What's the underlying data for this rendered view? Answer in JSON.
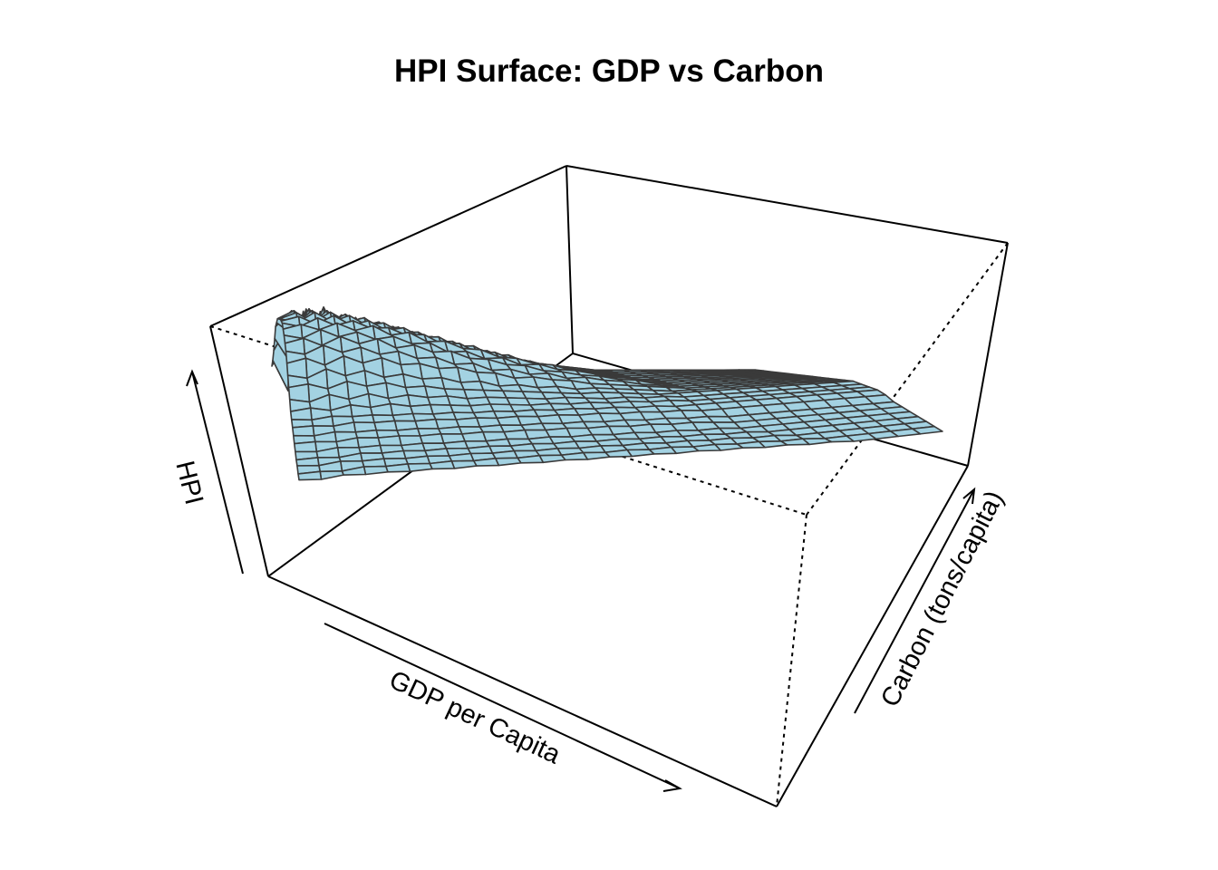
{
  "chart_data": {
    "type": "surface",
    "title": "HPI Surface: GDP vs Carbon",
    "xlabel": "GDP per Capita",
    "ylabel": "Carbon (tons/capita)",
    "zlabel": "HPI",
    "surface_color": "#a3d2e2",
    "mesh_color": "#3a3a3a",
    "box": true,
    "ticks": false,
    "grid": {
      "x_count": 30,
      "y_count": 30,
      "z": [
        [
          3.0,
          4.5,
          2.0,
          5.5,
          1.5,
          5.0,
          2.5,
          4.8,
          3.2,
          4.0,
          2.8,
          4.4,
          3.0,
          3.8,
          3.3,
          3.6,
          3.4,
          3.5,
          3.4,
          3.5,
          3.4,
          3.5,
          3.4,
          3.5,
          3.4,
          3.5,
          3.4,
          3.5,
          3.4,
          3.5
        ],
        [
          3.5,
          2.0,
          6.0,
          2.5,
          5.8,
          3.0,
          5.2,
          2.8,
          4.6,
          3.4,
          4.2,
          3.2,
          3.9,
          3.4,
          3.7,
          3.5,
          3.6,
          3.5,
          3.5,
          3.5,
          3.5,
          3.5,
          3.5,
          3.5,
          3.5,
          3.5,
          3.5,
          3.5,
          3.5,
          3.5
        ],
        [
          4.2,
          5.6,
          3.0,
          6.2,
          3.5,
          5.5,
          3.8,
          5.0,
          3.9,
          4.6,
          3.8,
          4.3,
          3.7,
          4.0,
          3.7,
          3.8,
          3.6,
          3.7,
          3.6,
          3.6,
          3.6,
          3.6,
          3.6,
          3.6,
          3.6,
          3.6,
          3.6,
          3.6,
          3.6,
          3.6
        ],
        [
          5.0,
          3.8,
          6.5,
          4.0,
          6.0,
          4.2,
          5.6,
          4.3,
          5.0,
          4.2,
          4.6,
          4.1,
          4.3,
          4.0,
          4.0,
          3.9,
          3.8,
          3.8,
          3.7,
          3.7,
          3.7,
          3.7,
          3.7,
          3.7,
          3.7,
          3.7,
          3.7,
          3.7,
          3.7,
          3.7
        ],
        [
          5.8,
          6.6,
          5.0,
          6.8,
          5.2,
          6.3,
          5.0,
          5.8,
          4.8,
          5.3,
          4.6,
          4.9,
          4.4,
          4.5,
          4.2,
          4.2,
          4.0,
          4.0,
          3.9,
          3.8,
          3.8,
          3.8,
          3.8,
          3.8,
          3.8,
          3.8,
          3.8,
          3.8,
          3.8,
          3.8
        ],
        [
          6.2,
          5.6,
          6.9,
          5.8,
          6.6,
          5.6,
          6.2,
          5.4,
          5.7,
          5.1,
          5.2,
          4.8,
          4.8,
          4.5,
          4.5,
          4.3,
          4.2,
          4.1,
          4.0,
          3.9,
          3.9,
          3.9,
          3.9,
          3.9,
          3.9,
          3.9,
          3.9,
          3.9,
          3.9,
          3.9
        ],
        [
          6.6,
          7.0,
          6.3,
          7.0,
          6.2,
          6.6,
          6.0,
          6.2,
          5.6,
          5.7,
          5.2,
          5.2,
          4.8,
          4.8,
          4.5,
          4.5,
          4.3,
          4.2,
          4.1,
          4.0,
          4.0,
          4.0,
          4.0,
          4.0,
          4.0,
          4.0,
          4.0,
          4.0,
          4.0,
          4.0
        ],
        [
          6.8,
          6.5,
          7.2,
          6.6,
          7.0,
          6.4,
          6.6,
          6.0,
          6.1,
          5.6,
          5.6,
          5.2,
          5.1,
          4.8,
          4.7,
          4.5,
          4.4,
          4.3,
          4.2,
          4.1,
          4.0,
          4.0,
          4.0,
          4.0,
          4.0,
          4.0,
          4.0,
          4.0,
          4.0,
          4.0
        ],
        [
          7.0,
          7.3,
          6.8,
          7.3,
          6.8,
          7.0,
          6.4,
          6.5,
          6.0,
          6.0,
          5.5,
          5.5,
          5.0,
          5.0,
          4.7,
          4.6,
          4.4,
          4.3,
          4.2,
          4.1,
          4.0,
          4.0,
          4.0,
          4.0,
          4.0,
          4.0,
          4.0,
          4.0,
          4.0,
          4.0
        ],
        [
          7.2,
          7.0,
          7.5,
          7.0,
          7.3,
          6.8,
          6.9,
          6.4,
          6.4,
          5.9,
          5.9,
          5.4,
          5.4,
          5.0,
          4.9,
          4.7,
          4.5,
          4.4,
          4.2,
          4.1,
          4.0,
          4.0,
          4.0,
          4.0,
          4.0,
          4.0,
          4.0,
          4.0,
          4.0,
          4.0
        ],
        [
          7.3,
          7.5,
          7.1,
          7.5,
          7.0,
          7.2,
          6.7,
          6.8,
          6.3,
          6.3,
          5.8,
          5.8,
          5.3,
          5.3,
          4.9,
          4.8,
          4.6,
          4.4,
          4.3,
          4.1,
          4.0,
          4.0,
          4.0,
          4.0,
          4.0,
          4.0,
          4.0,
          4.0,
          4.0,
          4.0
        ],
        [
          7.4,
          7.2,
          7.6,
          7.2,
          7.4,
          7.0,
          7.0,
          6.6,
          6.6,
          6.1,
          6.1,
          5.6,
          5.6,
          5.2,
          5.1,
          4.8,
          4.7,
          4.5,
          4.3,
          4.2,
          4.0,
          4.0,
          4.0,
          4.0,
          4.0,
          4.0,
          4.0,
          4.0,
          4.0,
          4.0
        ],
        [
          7.3,
          7.5,
          7.2,
          7.5,
          7.1,
          7.3,
          6.8,
          6.9,
          6.4,
          6.4,
          6.0,
          5.9,
          5.5,
          5.4,
          5.1,
          5.0,
          4.7,
          4.6,
          4.4,
          4.2,
          4.1,
          4.0,
          4.0,
          4.0,
          4.0,
          4.0,
          4.0,
          4.0,
          4.0,
          4.0
        ],
        [
          7.2,
          7.0,
          7.4,
          7.0,
          7.2,
          6.8,
          6.9,
          6.5,
          6.5,
          6.0,
          6.0,
          5.6,
          5.6,
          5.2,
          5.2,
          4.9,
          4.8,
          4.6,
          4.4,
          4.3,
          4.1,
          4.0,
          4.0,
          4.0,
          4.0,
          4.0,
          4.0,
          4.0,
          4.0,
          4.0
        ],
        [
          7.0,
          7.2,
          6.8,
          7.2,
          6.8,
          7.0,
          6.5,
          6.6,
          6.2,
          6.2,
          5.8,
          5.7,
          5.4,
          5.3,
          5.0,
          4.9,
          4.7,
          4.6,
          4.4,
          4.3,
          4.1,
          4.0,
          4.0,
          4.0,
          4.0,
          4.0,
          4.0,
          4.0,
          4.0,
          4.0
        ],
        [
          6.8,
          6.6,
          7.0,
          6.6,
          6.8,
          6.4,
          6.5,
          6.1,
          6.1,
          5.7,
          5.7,
          5.3,
          5.3,
          5.0,
          5.0,
          4.7,
          4.7,
          4.5,
          4.4,
          4.2,
          4.1,
          4.0,
          4.0,
          4.0,
          4.0,
          4.0,
          4.0,
          4.0,
          4.0,
          4.0
        ],
        [
          6.4,
          6.6,
          6.2,
          6.6,
          6.2,
          6.4,
          6.0,
          6.0,
          5.7,
          5.7,
          5.4,
          5.3,
          5.0,
          5.0,
          4.8,
          4.7,
          4.5,
          4.4,
          4.3,
          4.2,
          4.1,
          4.0,
          4.0,
          4.0,
          4.0,
          4.0,
          4.0,
          4.0,
          4.0,
          4.0
        ],
        [
          6.0,
          5.8,
          6.2,
          5.8,
          6.0,
          5.6,
          5.7,
          5.4,
          5.4,
          5.1,
          5.1,
          4.8,
          4.8,
          4.6,
          4.6,
          4.4,
          4.4,
          4.3,
          4.2,
          4.1,
          4.0,
          4.0,
          4.0,
          4.0,
          4.0,
          4.0,
          4.0,
          4.0,
          4.0,
          4.0
        ],
        [
          5.6,
          5.7,
          5.4,
          5.7,
          5.4,
          5.5,
          5.2,
          5.2,
          5.0,
          4.9,
          4.8,
          4.7,
          4.6,
          4.5,
          4.4,
          4.3,
          4.3,
          4.2,
          4.1,
          4.0,
          4.0,
          4.0,
          4.0,
          4.0,
          4.0,
          4.0,
          4.0,
          4.0,
          4.0,
          4.0
        ],
        [
          5.2,
          5.0,
          5.3,
          5.0,
          5.2,
          4.9,
          5.0,
          4.8,
          4.8,
          4.6,
          4.6,
          4.5,
          4.4,
          4.3,
          4.3,
          4.2,
          4.1,
          4.1,
          4.0,
          4.0,
          3.9,
          3.9,
          3.9,
          3.9,
          3.9,
          3.9,
          3.9,
          3.9,
          3.9,
          3.9
        ],
        [
          4.8,
          4.9,
          4.7,
          4.9,
          4.7,
          4.8,
          4.6,
          4.6,
          4.5,
          4.4,
          4.4,
          4.3,
          4.2,
          4.2,
          4.1,
          4.1,
          4.0,
          4.0,
          3.9,
          3.9,
          3.8,
          3.8,
          3.8,
          3.8,
          3.8,
          3.8,
          3.8,
          3.8,
          3.8,
          3.8
        ],
        [
          4.6,
          4.5,
          4.6,
          4.5,
          4.5,
          4.4,
          4.4,
          4.3,
          4.3,
          4.2,
          4.2,
          4.1,
          4.1,
          4.0,
          4.0,
          3.9,
          3.9,
          3.8,
          3.8,
          3.7,
          3.7,
          3.7,
          3.7,
          3.7,
          3.7,
          3.7,
          3.7,
          3.7,
          3.7,
          3.7
        ],
        [
          4.4,
          4.4,
          4.3,
          4.4,
          4.3,
          4.3,
          4.2,
          4.2,
          4.1,
          4.1,
          4.0,
          4.0,
          3.9,
          3.9,
          3.8,
          3.8,
          3.7,
          3.7,
          3.6,
          3.6,
          3.5,
          3.5,
          3.5,
          3.5,
          3.5,
          3.5,
          3.5,
          3.5,
          3.5,
          3.5
        ],
        [
          4.2,
          4.1,
          4.2,
          4.1,
          4.1,
          4.0,
          4.0,
          3.9,
          3.9,
          3.8,
          3.8,
          3.7,
          3.7,
          3.6,
          3.6,
          3.5,
          3.5,
          3.4,
          3.4,
          3.3,
          3.3,
          3.2,
          3.2,
          3.2,
          3.2,
          3.2,
          3.2,
          3.2,
          3.2,
          3.2
        ],
        [
          4.0,
          4.0,
          3.9,
          4.0,
          3.9,
          3.9,
          3.8,
          3.8,
          3.7,
          3.7,
          3.6,
          3.6,
          3.5,
          3.5,
          3.4,
          3.4,
          3.3,
          3.3,
          3.2,
          3.2,
          3.1,
          3.0,
          3.0,
          3.0,
          3.0,
          3.0,
          3.0,
          3.0,
          3.0,
          3.0
        ],
        [
          3.8,
          3.7,
          3.8,
          3.7,
          3.7,
          3.6,
          3.6,
          3.5,
          3.5,
          3.4,
          3.4,
          3.3,
          3.3,
          3.2,
          3.2,
          3.1,
          3.1,
          3.0,
          3.0,
          2.9,
          2.9,
          2.8,
          2.8,
          2.8,
          2.8,
          2.8,
          2.8,
          2.8,
          2.8,
          2.8
        ],
        [
          3.6,
          3.6,
          3.5,
          3.6,
          3.5,
          3.5,
          3.4,
          3.4,
          3.3,
          3.3,
          3.2,
          3.2,
          3.1,
          3.1,
          3.0,
          3.0,
          2.9,
          2.9,
          2.8,
          2.8,
          2.7,
          2.7,
          2.6,
          2.6,
          2.6,
          2.6,
          2.6,
          2.6,
          2.6,
          2.6
        ],
        [
          3.5,
          3.4,
          3.5,
          3.4,
          3.4,
          3.3,
          3.3,
          3.2,
          3.2,
          3.1,
          3.1,
          3.0,
          3.0,
          2.9,
          2.9,
          2.8,
          2.8,
          2.7,
          2.7,
          2.6,
          2.6,
          2.5,
          2.5,
          2.4,
          2.4,
          2.4,
          2.4,
          2.4,
          2.4,
          2.4
        ],
        [
          3.3,
          3.3,
          3.2,
          3.3,
          3.2,
          3.2,
          3.1,
          3.1,
          3.0,
          3.0,
          2.9,
          2.9,
          2.8,
          2.8,
          2.7,
          2.7,
          2.6,
          2.6,
          2.5,
          2.5,
          2.4,
          2.4,
          2.3,
          2.3,
          2.2,
          2.2,
          2.2,
          2.2,
          2.2,
          2.2
        ],
        [
          3.2,
          3.1,
          3.2,
          3.1,
          3.1,
          3.0,
          3.0,
          2.9,
          2.9,
          2.8,
          2.8,
          2.7,
          2.7,
          2.6,
          2.6,
          2.5,
          2.5,
          2.4,
          2.4,
          2.3,
          2.3,
          2.2,
          2.2,
          2.1,
          2.1,
          2.0,
          2.0,
          2.0,
          2.0,
          2.0
        ]
      ]
    }
  }
}
